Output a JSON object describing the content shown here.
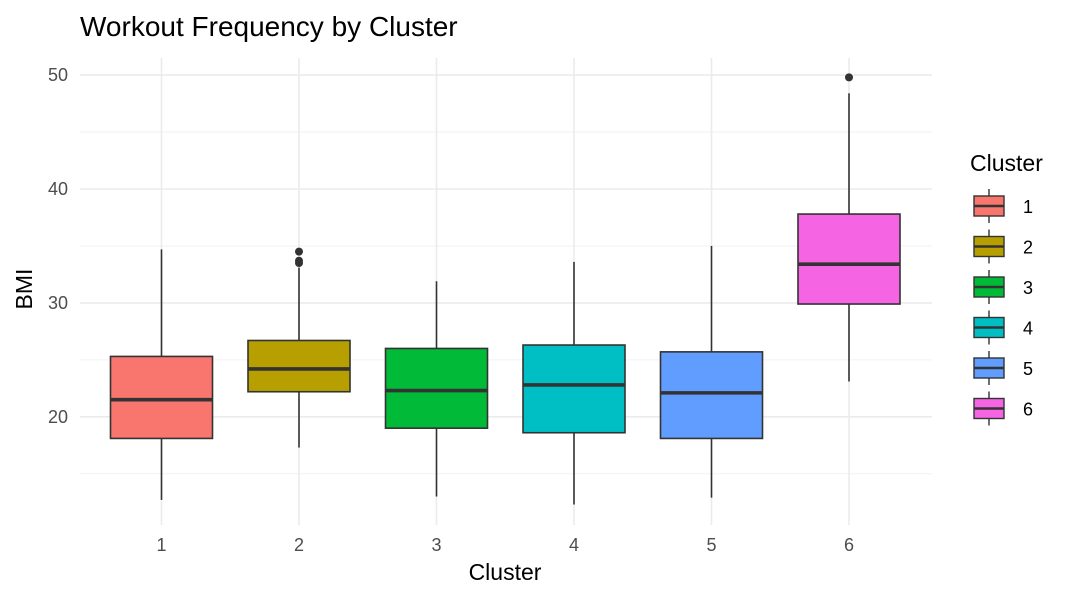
{
  "chart_data": {
    "type": "boxplot",
    "title": "Workout Frequency by Cluster",
    "xlabel": "Cluster",
    "ylabel": "BMI",
    "ylim": [
      10.5,
      51.5
    ],
    "yticks": [
      20,
      30,
      40,
      50
    ],
    "ytick_labels": [
      "20",
      "30",
      "40",
      "50"
    ],
    "minor_grid": [
      15,
      25,
      35,
      45
    ],
    "grid": true,
    "legend": {
      "title": "Cluster",
      "placement": "right"
    },
    "categories": [
      "1",
      "2",
      "3",
      "4",
      "5",
      "6"
    ],
    "series": [
      {
        "category": "1",
        "color": "#F8766D",
        "whisker_low": 12.7,
        "q1": 18.1,
        "median": 21.5,
        "q3": 25.3,
        "whisker_high": 34.7,
        "outliers": []
      },
      {
        "category": "2",
        "color": "#B79F00",
        "whisker_low": 17.3,
        "q1": 22.2,
        "median": 24.2,
        "q3": 26.7,
        "whisker_high": 33.1,
        "outliers": [
          33.5,
          33.7,
          34.5
        ]
      },
      {
        "category": "3",
        "color": "#00BA38",
        "whisker_low": 13.0,
        "q1": 19.0,
        "median": 22.3,
        "q3": 26.0,
        "whisker_high": 31.9,
        "outliers": []
      },
      {
        "category": "4",
        "color": "#00BFC4",
        "whisker_low": 12.3,
        "q1": 18.6,
        "median": 22.8,
        "q3": 26.3,
        "whisker_high": 33.6,
        "outliers": []
      },
      {
        "category": "5",
        "color": "#619CFF",
        "whisker_low": 12.9,
        "q1": 18.1,
        "median": 22.1,
        "q3": 25.7,
        "whisker_high": 35.0,
        "outliers": []
      },
      {
        "category": "6",
        "color": "#F564E3",
        "whisker_low": 23.1,
        "q1": 29.9,
        "median": 33.4,
        "q3": 37.8,
        "whisker_high": 48.4,
        "outliers": [
          49.8
        ]
      }
    ]
  }
}
